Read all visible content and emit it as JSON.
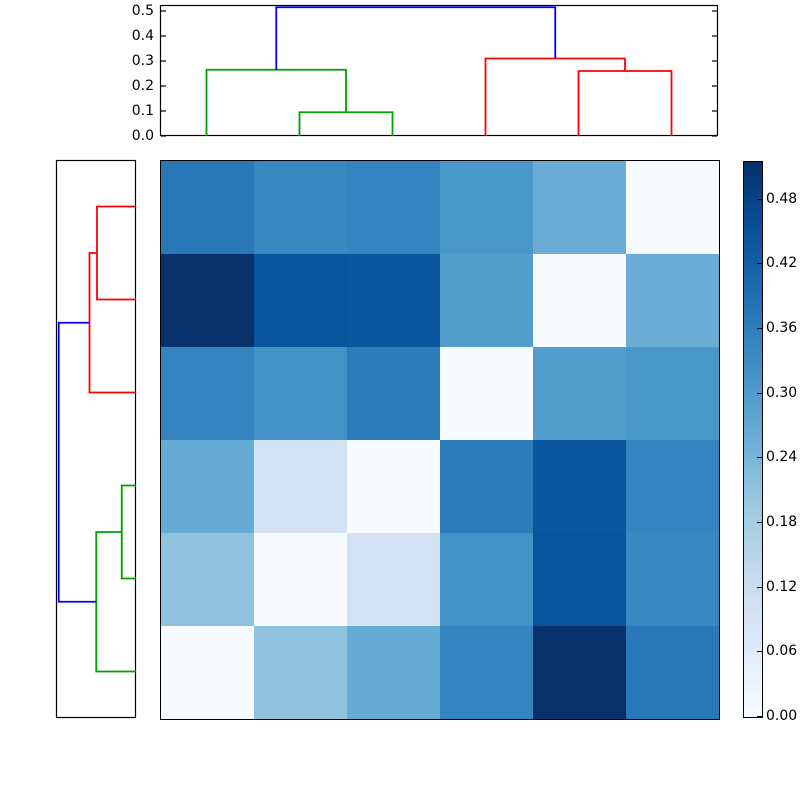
{
  "chart_data": {
    "type": "heatmap",
    "subtype": "clustermap (hierarchically-clustered distance matrix with dendrograms)",
    "title": "",
    "xlabel": "",
    "ylabel": "",
    "colormap_name": "Blues",
    "colormap_stops": [
      "#f7fbff",
      "#deebf7",
      "#c6dbef",
      "#9ecae1",
      "#6baed6",
      "#4292c6",
      "#2171b5",
      "#08519c",
      "#08306b"
    ],
    "vmin": 0.0,
    "vmax": 0.515,
    "heatmap": {
      "n_rows": 6,
      "n_cols": 6,
      "row_order_note": "rows (top to bottom) are the reverse of column order; anti-diagonal cells equal 0",
      "values": [
        [
          0.37,
          0.34,
          0.35,
          0.31,
          0.26,
          0.0
        ],
        [
          0.515,
          0.445,
          0.44,
          0.295,
          0.0,
          0.26
        ],
        [
          0.35,
          0.32,
          0.365,
          0.0,
          0.295,
          0.31
        ],
        [
          0.265,
          0.095,
          0.0,
          0.365,
          0.44,
          0.35
        ],
        [
          0.21,
          0.0,
          0.095,
          0.32,
          0.445,
          0.34
        ],
        [
          0.0,
          0.21,
          0.265,
          0.35,
          0.515,
          0.37
        ]
      ],
      "cell_colors": [
        [
          "#2979b9",
          "#3989c1",
          "#3484bf",
          "#4a97c9",
          "#69add5",
          "#f7fbff"
        ],
        [
          "#08306b",
          "#0a549e",
          "#0c56a0",
          "#539ecd",
          "#f7fbff",
          "#69add5"
        ],
        [
          "#3484bf",
          "#4393c7",
          "#2c7cbb",
          "#f7fbff",
          "#539ecd",
          "#4a97c9"
        ],
        [
          "#66abd4",
          "#d3e3f3",
          "#f7fbff",
          "#2c7cbb",
          "#0c56a0",
          "#3484bf"
        ],
        [
          "#90c3de",
          "#f7fbff",
          "#d3e3f3",
          "#4393c7",
          "#0a549e",
          "#3989c1"
        ],
        [
          "#f7fbff",
          "#90c3de",
          "#66abd4",
          "#3484bf",
          "#08306b",
          "#2979b9"
        ]
      ]
    },
    "colorbar": {
      "tick_labels": [
        "0.00",
        "0.06",
        "0.12",
        "0.18",
        "0.24",
        "0.30",
        "0.36",
        "0.42",
        "0.48"
      ],
      "tick_values": [
        0.0,
        0.06,
        0.12,
        0.18,
        0.24,
        0.3,
        0.36,
        0.42,
        0.48
      ]
    },
    "top_dendrogram": {
      "axis_tick_labels": [
        "0.0",
        "0.1",
        "0.2",
        "0.3",
        "0.4",
        "0.5"
      ],
      "axis_tick_values": [
        0.0,
        0.1,
        0.2,
        0.3,
        0.4,
        0.5
      ],
      "axis_max": 0.524,
      "merges": [
        {
          "a_pos": 1.0,
          "a_h": 0.0,
          "b_pos": 2.0,
          "b_h": 0.0,
          "h": 0.095,
          "color": "green"
        },
        {
          "a_pos": 0.0,
          "a_h": 0.0,
          "b_pos": 1.5,
          "b_h": 0.095,
          "h": 0.265,
          "color": "green"
        },
        {
          "a_pos": 4.0,
          "a_h": 0.0,
          "b_pos": 5.0,
          "b_h": 0.0,
          "h": 0.26,
          "color": "red"
        },
        {
          "a_pos": 3.0,
          "a_h": 0.0,
          "b_pos": 4.5,
          "b_h": 0.26,
          "h": 0.31,
          "color": "red"
        },
        {
          "a_pos": 0.75,
          "a_h": 0.265,
          "b_pos": 3.75,
          "b_h": 0.31,
          "h": 0.515,
          "color": "blue"
        }
      ]
    },
    "left_dendrogram": {
      "axis_tick_labels": [],
      "axis_max": 0.533,
      "merges": [
        {
          "a_pos": 0.0,
          "a_h": 0.0,
          "b_pos": 1.0,
          "b_h": 0.0,
          "h": 0.26,
          "color": "red"
        },
        {
          "a_pos": 2.0,
          "a_h": 0.0,
          "b_pos": 0.5,
          "b_h": 0.26,
          "h": 0.31,
          "color": "red"
        },
        {
          "a_pos": 3.0,
          "a_h": 0.0,
          "b_pos": 4.0,
          "b_h": 0.0,
          "h": 0.095,
          "color": "green"
        },
        {
          "a_pos": 5.0,
          "a_h": 0.0,
          "b_pos": 3.5,
          "b_h": 0.095,
          "h": 0.265,
          "color": "green"
        },
        {
          "a_pos": 1.25,
          "a_h": 0.31,
          "b_pos": 4.25,
          "b_h": 0.265,
          "h": 0.515,
          "color": "blue"
        }
      ]
    },
    "link_colors": {
      "blue": "#0000ff",
      "green": "#00a000",
      "red": "#ff0000"
    }
  }
}
